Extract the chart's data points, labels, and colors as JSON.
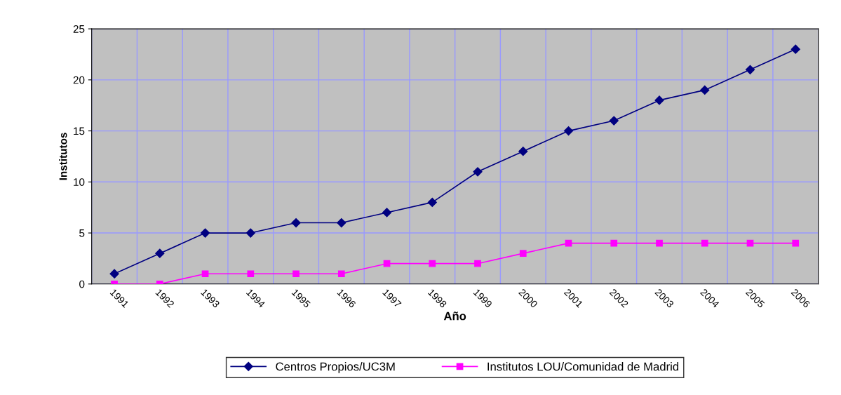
{
  "chart_data": {
    "type": "line",
    "xlabel": "Año",
    "ylabel": "Institutos",
    "categories": [
      "1991",
      "1992",
      "1993",
      "1994",
      "1995",
      "1996",
      "1997",
      "1998",
      "1999",
      "2000",
      "2001",
      "2002",
      "2003",
      "2004",
      "2005",
      "2006"
    ],
    "series": [
      {
        "name": "Centros Propios/UC3M",
        "color": "#000080",
        "marker": "diamond",
        "values": [
          1,
          3,
          5,
          5,
          6,
          6,
          7,
          8,
          11,
          13,
          15,
          16,
          18,
          19,
          21,
          23
        ]
      },
      {
        "name": "Institutos LOU/Comunidad de Madrid",
        "color": "#ff00ff",
        "marker": "square",
        "values": [
          0,
          0,
          1,
          1,
          1,
          1,
          2,
          2,
          2,
          3,
          4,
          4,
          4,
          4,
          4,
          4
        ]
      }
    ],
    "ylim": [
      0,
      25
    ],
    "yticks": [
      0,
      5,
      10,
      15,
      20,
      25
    ],
    "grid": true,
    "legend": "bottom",
    "line_style": "solid"
  }
}
